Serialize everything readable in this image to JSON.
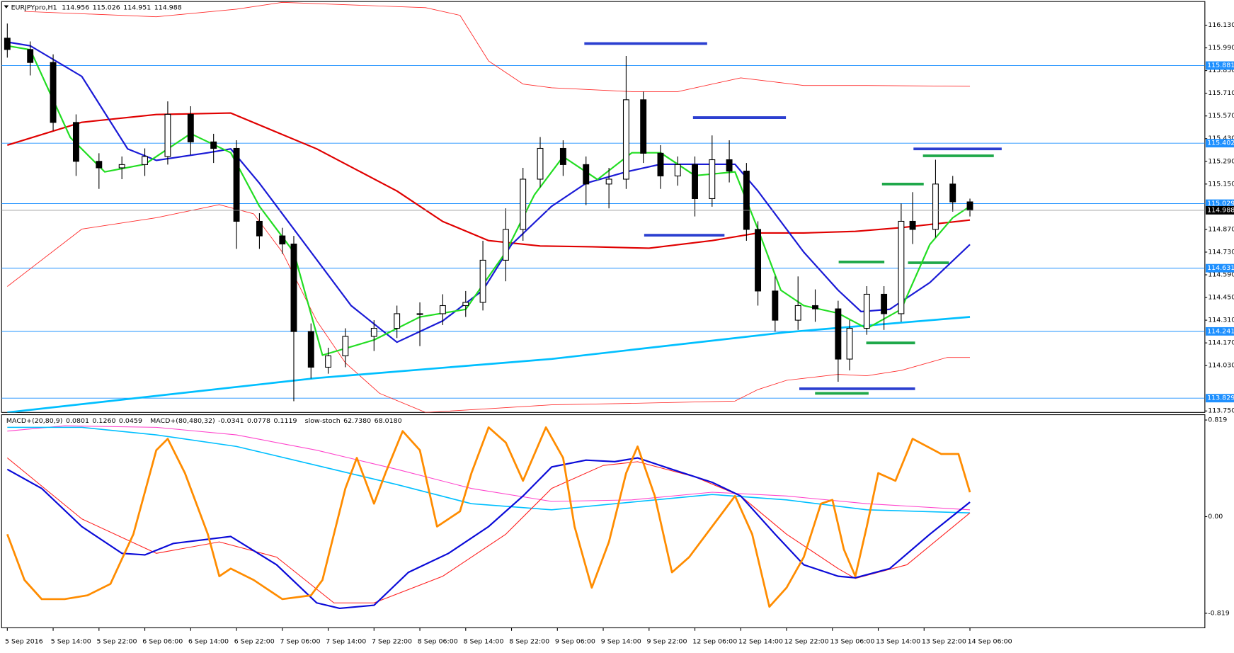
{
  "chart_data": [
    {
      "type": "candlestick",
      "symbol": "EURJPYpro,H1",
      "last_bar": [
        114.956,
        115.026,
        114.951,
        114.988
      ],
      "xlim": [
        -1,
        209
      ],
      "ylim": [
        113.741,
        116.276
      ],
      "yticks": [
        {
          "value": 116.13,
          "label": "116.130"
        },
        {
          "value": 115.99,
          "label": "115.990"
        },
        {
          "value": 115.85,
          "label": "115.850"
        },
        {
          "value": 115.71,
          "label": "115.710"
        },
        {
          "value": 115.57,
          "label": "115.570"
        },
        {
          "value": 115.43,
          "label": "115.430"
        },
        {
          "value": 115.29,
          "label": "115.290"
        },
        {
          "value": 115.15,
          "label": "115.150"
        },
        {
          "value": 114.87,
          "label": "114.870"
        },
        {
          "value": 114.73,
          "label": "114.730"
        },
        {
          "value": 114.59,
          "label": "114.590"
        },
        {
          "value": 114.45,
          "label": "114.450"
        },
        {
          "value": 114.31,
          "label": "114.310"
        },
        {
          "value": 114.17,
          "label": "114.170"
        },
        {
          "value": 114.03,
          "label": "114.030"
        },
        {
          "value": 113.75,
          "label": "113.750"
        }
      ],
      "grid": false,
      "levels": [
        115.881,
        115.402,
        115.029,
        114.631,
        114.241,
        113.829
      ],
      "level_color": "#1e90ff",
      "last_price": 114.988,
      "up_color": "#ffffff",
      "down_color": "#000000",
      "outline_color": "#000000",
      "x": [
        0,
        4,
        8,
        12,
        16,
        20,
        24,
        28,
        32,
        36,
        40,
        44,
        48,
        50,
        53,
        56,
        59,
        64,
        68,
        72,
        76,
        80,
        83,
        87,
        90,
        93,
        97,
        101,
        105,
        108,
        111,
        114,
        117,
        120,
        123,
        126,
        129,
        131,
        134,
        138,
        141,
        145,
        147,
        150,
        153,
        156,
        158,
        162,
        165,
        168
      ],
      "open": [
        116.05,
        115.98,
        115.9,
        115.53,
        115.29,
        115.25,
        115.27,
        115.32,
        115.58,
        115.41,
        115.37,
        114.92,
        114.83,
        114.78,
        114.24,
        114.02,
        114.09,
        114.21,
        114.26,
        114.35,
        114.35,
        114.4,
        114.42,
        114.68,
        114.87,
        115.18,
        115.37,
        115.27,
        115.15,
        115.18,
        115.67,
        115.34,
        115.2,
        115.27,
        115.06,
        115.3,
        115.23,
        114.87,
        114.49,
        114.31,
        114.4,
        114.38,
        114.07,
        114.26,
        114.47,
        114.35,
        114.92,
        114.87,
        115.15,
        115.04
      ],
      "high": [
        116.14,
        116.03,
        115.95,
        115.58,
        115.34,
        115.32,
        115.37,
        115.66,
        115.63,
        115.46,
        115.42,
        114.97,
        114.88,
        114.83,
        114.29,
        114.14,
        114.26,
        114.31,
        114.4,
        114.42,
        114.47,
        114.49,
        114.8,
        115.0,
        115.25,
        115.44,
        115.42,
        115.32,
        115.25,
        115.94,
        115.72,
        115.39,
        115.32,
        115.32,
        115.45,
        115.42,
        115.28,
        114.92,
        114.58,
        114.58,
        114.5,
        114.43,
        114.31,
        114.52,
        114.52,
        115.03,
        115.1,
        115.3,
        115.2,
        115.06
      ],
      "low": [
        115.93,
        115.82,
        115.48,
        115.2,
        115.12,
        115.18,
        115.2,
        115.27,
        115.33,
        115.28,
        114.75,
        114.75,
        114.72,
        113.81,
        113.95,
        113.98,
        114.02,
        114.12,
        114.2,
        114.15,
        114.28,
        114.33,
        114.37,
        114.55,
        114.8,
        115.13,
        115.2,
        115.02,
        115.0,
        115.12,
        115.28,
        115.12,
        115.14,
        114.95,
        115.01,
        115.16,
        114.8,
        114.4,
        114.24,
        114.25,
        114.3,
        113.93,
        114.0,
        114.22,
        114.25,
        114.3,
        114.78,
        114.82,
        114.98,
        114.95
      ],
      "close": [
        115.98,
        115.9,
        115.53,
        115.29,
        115.25,
        115.27,
        115.32,
        115.58,
        115.41,
        115.37,
        114.92,
        114.83,
        114.78,
        114.24,
        114.02,
        114.09,
        114.21,
        114.26,
        114.35,
        114.35,
        114.4,
        114.42,
        114.68,
        114.87,
        115.18,
        115.37,
        115.27,
        115.15,
        115.18,
        115.67,
        115.34,
        115.2,
        115.27,
        115.06,
        115.3,
        115.23,
        114.87,
        114.49,
        114.31,
        114.4,
        114.38,
        114.07,
        114.26,
        114.47,
        114.35,
        114.92,
        114.87,
        115.15,
        115.04,
        114.988
      ],
      "series": [
        {
          "color": "#ff2a2a",
          "width": 0.8,
          "x": [
            3,
            26,
            40,
            48,
            73,
            79,
            84,
            90,
            95,
            109,
            117,
            128,
            139,
            150,
            168
          ],
          "values": [
            116.215,
            116.182,
            116.229,
            116.271,
            116.238,
            116.191,
            115.909,
            115.767,
            115.744,
            115.72,
            115.72,
            115.805,
            115.758,
            115.758,
            115.753
          ]
        },
        {
          "color": "#ff2a2a",
          "width": 0.8,
          "x": [
            0,
            13,
            26,
            37,
            43,
            48,
            54,
            59,
            65,
            73,
            84,
            95,
            109,
            127,
            131,
            136,
            145,
            150,
            156,
            164,
            168
          ],
          "values": [
            114.518,
            114.872,
            114.942,
            115.023,
            114.966,
            114.73,
            114.306,
            114.047,
            113.858,
            113.741,
            113.764,
            113.788,
            113.797,
            113.811,
            113.882,
            113.939,
            113.976,
            113.967,
            114.0,
            114.08,
            114.08
          ]
        },
        {
          "color": "#00bfff",
          "width": 2.5,
          "x": [
            0,
            54,
            95,
            136,
            168
          ],
          "values": [
            113.741,
            113.953,
            114.071,
            114.236,
            114.33
          ]
        },
        {
          "color": "#e00000",
          "width": 2,
          "x": [
            0,
            13,
            26,
            39,
            54,
            68,
            76,
            84,
            93,
            102,
            112,
            123,
            131,
            139,
            148,
            156,
            168
          ],
          "values": [
            115.39,
            115.531,
            115.579,
            115.588,
            115.367,
            115.107,
            114.919,
            114.801,
            114.768,
            114.763,
            114.754,
            114.801,
            114.848,
            114.848,
            114.858,
            114.881,
            114.928
          ]
        },
        {
          "color": "#1a1ad6",
          "width": 2,
          "x": [
            0,
            4,
            13,
            21,
            26,
            35,
            39,
            44,
            51,
            60,
            68,
            76,
            83,
            88,
            95,
            101,
            108,
            114,
            123,
            127,
            131,
            139,
            145,
            149,
            154,
            161,
            168
          ],
          "values": [
            116.026,
            116.003,
            115.814,
            115.367,
            115.296,
            115.343,
            115.367,
            115.155,
            114.825,
            114.4,
            114.174,
            114.306,
            114.495,
            114.777,
            115.013,
            115.155,
            115.225,
            115.272,
            115.272,
            115.272,
            115.107,
            114.73,
            114.495,
            114.363,
            114.377,
            114.542,
            114.777
          ]
        },
        {
          "color": "#22dd22",
          "width": 2,
          "x": [
            0,
            4,
            11,
            17,
            24,
            32,
            39,
            44,
            50,
            55,
            64,
            72,
            80,
            87,
            92,
            97,
            103,
            109,
            114,
            120,
            127,
            131,
            135,
            139,
            145,
            150,
            156,
            161,
            165,
            168
          ],
          "values": [
            116.003,
            115.979,
            115.437,
            115.225,
            115.272,
            115.461,
            115.343,
            115.013,
            114.73,
            114.094,
            114.188,
            114.33,
            114.377,
            114.73,
            115.084,
            115.319,
            115.178,
            115.343,
            115.343,
            115.202,
            115.225,
            114.872,
            114.495,
            114.4,
            114.353,
            114.259,
            114.377,
            114.777,
            114.942,
            115.013
          ]
        }
      ]
    },
    {
      "type": "line",
      "legend_text": [
        {
          "name": "MACD+(20,80,9)",
          "values": [
            "0.0801",
            "0.1260",
            "0.0459"
          ]
        },
        {
          "name": "MACD+(80,480,32)",
          "values": [
            "-0.0341",
            "0.0778",
            "0.1119"
          ]
        },
        {
          "name": "slow-stoch",
          "values": [
            "62.7380",
            "68.0180"
          ]
        }
      ],
      "xlim": [
        -1,
        209
      ],
      "ylim": [
        -0.942,
        0.864
      ],
      "yticks": [
        0.819,
        {
          "value": 0,
          "label": "0.00"
        },
        -0.819
      ],
      "grid": false,
      "xticks": [
        {
          "value": 0,
          "label": "5 Sep 2016"
        },
        {
          "value": 8,
          "label": "5 Sep 14:00"
        },
        {
          "value": 16,
          "label": "5 Sep 22:00"
        },
        {
          "value": 24,
          "label": "6 Sep 06:00"
        },
        {
          "value": 32,
          "label": "6 Sep 14:00"
        },
        {
          "value": 40,
          "label": "6 Sep 22:00"
        },
        {
          "value": 48,
          "label": "7 Sep 06:00"
        },
        {
          "value": 56,
          "label": "7 Sep 14:00"
        },
        {
          "value": 64,
          "label": "7 Sep 22:00"
        },
        {
          "value": 72,
          "label": "8 Sep 06:00"
        },
        {
          "value": 80,
          "label": "8 Sep 14:00"
        },
        {
          "value": 88,
          "label": "8 Sep 22:00"
        },
        {
          "value": 96,
          "label": "9 Sep 06:00"
        },
        {
          "value": 104,
          "label": "9 Sep 14:00"
        },
        {
          "value": 112,
          "label": "9 Sep 22:00"
        },
        {
          "value": 120,
          "label": "12 Sep 06:00"
        },
        {
          "value": 128,
          "label": "12 Sep 14:00"
        },
        {
          "value": 136,
          "label": "12 Sep 22:00"
        },
        {
          "value": 144,
          "label": "13 Sep 06:00"
        },
        {
          "value": 152,
          "label": "13 Sep 14:00"
        },
        {
          "value": 160,
          "label": "13 Sep 22:00"
        },
        {
          "value": 168,
          "label": "14 Sep 06:00"
        }
      ],
      "series": [
        {
          "color": "#ff44cc",
          "width": 1,
          "x": [
            0,
            10,
            26,
            40,
            54,
            68,
            81,
            95,
            109,
            123,
            136,
            150,
            168
          ],
          "values": [
            0.725,
            0.77,
            0.757,
            0.693,
            0.563,
            0.401,
            0.239,
            0.129,
            0.142,
            0.207,
            0.175,
            0.11,
            0.058
          ]
        },
        {
          "color": "#00bfff",
          "width": 1.5,
          "x": [
            0,
            13,
            26,
            40,
            54,
            68,
            81,
            95,
            109,
            123,
            136,
            150,
            168
          ],
          "values": [
            0.757,
            0.757,
            0.693,
            0.595,
            0.434,
            0.272,
            0.11,
            0.058,
            0.123,
            0.188,
            0.142,
            0.058,
            0.032
          ]
        },
        {
          "color": "#ff2020",
          "width": 1,
          "x": [
            0,
            13,
            26,
            37,
            47,
            57,
            64,
            76,
            87,
            95,
            104,
            110,
            120,
            128,
            136,
            145,
            148,
            157,
            168
          ],
          "values": [
            0.498,
            -0.019,
            -0.311,
            -0.214,
            -0.343,
            -0.731,
            -0.731,
            -0.505,
            -0.149,
            0.239,
            0.434,
            0.466,
            0.337,
            0.175,
            -0.149,
            -0.44,
            -0.524,
            -0.408,
            0.032
          ]
        },
        {
          "color": "#0a0ad8",
          "width": 2,
          "x": [
            0,
            6,
            13,
            20,
            24,
            29,
            39,
            47,
            54,
            58,
            64,
            70,
            77,
            84,
            90,
            95,
            101,
            106,
            110,
            116,
            123,
            128,
            134,
            139,
            145,
            148,
            154,
            161,
            168
          ],
          "values": [
            0.401,
            0.239,
            -0.084,
            -0.311,
            -0.324,
            -0.227,
            -0.168,
            -0.408,
            -0.731,
            -0.777,
            -0.751,
            -0.472,
            -0.311,
            -0.084,
            0.175,
            0.421,
            0.479,
            0.466,
            0.498,
            0.401,
            0.291,
            0.175,
            -0.149,
            -0.408,
            -0.505,
            -0.518,
            -0.44,
            -0.149,
            0.123
          ]
        },
        {
          "color": "#ff8c00",
          "width": 2.5,
          "x": [
            0,
            3,
            6,
            10,
            14,
            18,
            22,
            26,
            28,
            31,
            35,
            37,
            39,
            43,
            48,
            53,
            55,
            59,
            61,
            64,
            66,
            69,
            72,
            75,
            79,
            81,
            84,
            87,
            90,
            94,
            97,
            99,
            102,
            105,
            108,
            110,
            113,
            116,
            119,
            123,
            127,
            130,
            133,
            136,
            139,
            142,
            144,
            146,
            148,
            150,
            152,
            155,
            158,
            163,
            166,
            168
          ],
          "values": [
            -0.149,
            -0.537,
            -0.699,
            -0.699,
            -0.667,
            -0.57,
            -0.149,
            0.563,
            0.66,
            0.369,
            -0.149,
            -0.505,
            -0.44,
            -0.537,
            -0.699,
            -0.667,
            -0.537,
            0.239,
            0.498,
            0.11,
            0.369,
            0.725,
            0.563,
            -0.084,
            0.045,
            0.369,
            0.757,
            0.628,
            0.304,
            0.757,
            0.498,
            -0.084,
            -0.602,
            -0.214,
            0.369,
            0.595,
            0.175,
            -0.472,
            -0.343,
            -0.084,
            0.175,
            -0.149,
            -0.764,
            -0.602,
            -0.343,
            0.11,
            0.142,
            -0.278,
            -0.505,
            -0.084,
            0.369,
            0.304,
            0.66,
            0.531,
            0.531,
            0.207
          ]
        }
      ]
    }
  ]
}
